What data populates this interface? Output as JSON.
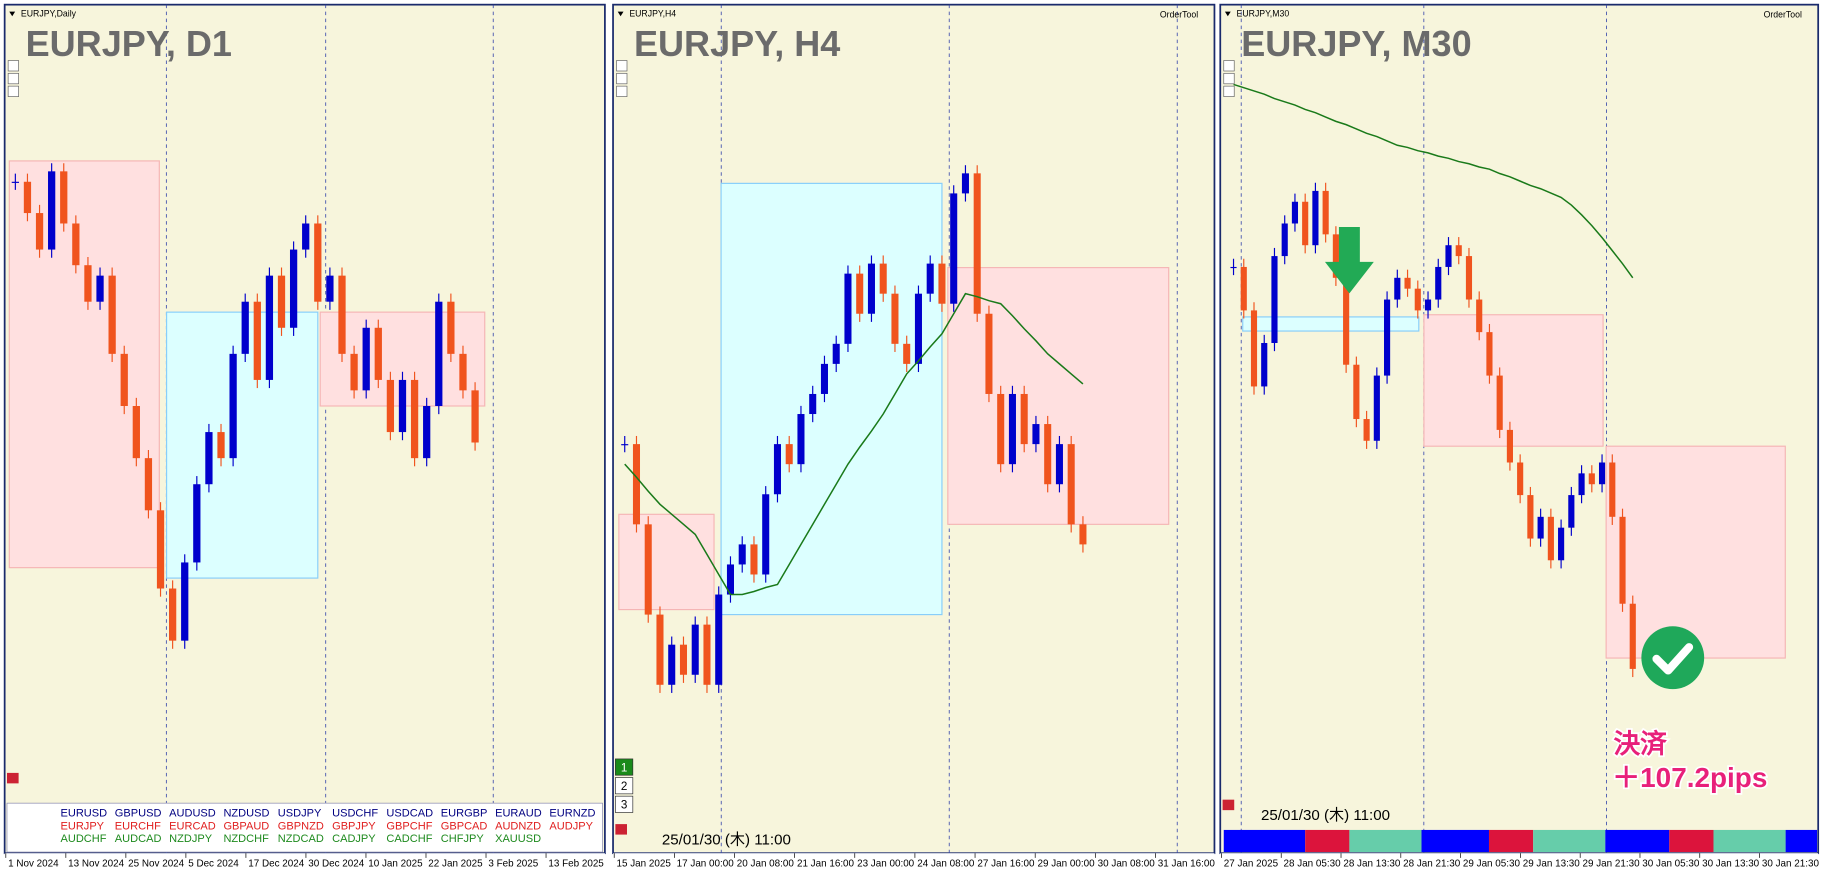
{
  "panels": [
    {
      "window_label": "EURJPY,Daily",
      "title": "EURJPY, D1",
      "x_labels": [
        "1 Nov 2024",
        "13 Nov 2024",
        "25 Nov 2024",
        "5 Dec 2024",
        "17 Dec 2024",
        "30 Dec 2024",
        "10 Jan 2025",
        "22 Jan 2025",
        "3 Feb 2025",
        "13 Feb 2025"
      ],
      "ylim": [
        155,
        167.5
      ],
      "closes": [
        165.8,
        165.2,
        164.5,
        166.0,
        165.0,
        164.2,
        163.5,
        164.0,
        162.5,
        161.5,
        160.5,
        159.5,
        158.0,
        157.0,
        158.5,
        160.0,
        161.0,
        160.5,
        162.5,
        163.5,
        162.0,
        164.0,
        163.0,
        164.5,
        165.0,
        163.5,
        164.0,
        162.5,
        161.8,
        163.0,
        162.0,
        161.0,
        162.0,
        160.5,
        161.5,
        163.5,
        162.5,
        161.8,
        160.8
      ],
      "zones": [
        {
          "from": 0,
          "to": 12.4,
          "low": 158.4,
          "high": 166.2,
          "color": "#ffe0e0"
        },
        {
          "from": 13,
          "to": 25.5,
          "low": 158.2,
          "high": 163.3,
          "color": "#dcffff"
        },
        {
          "from": 25.7,
          "to": 39.3,
          "low": 161.5,
          "high": 163.3,
          "color": "#ffe0e0"
        }
      ]
    },
    {
      "window_label": "EURJPY,H4",
      "title": "EURJPY, H4",
      "x_labels": [
        "15 Jan 2025",
        "17 Jan 00:00",
        "20 Jan 08:00",
        "21 Jan 16:00",
        "23 Jan 00:00",
        "24 Jan 08:00",
        "27 Jan 16:00",
        "29 Jan 00:00",
        "30 Jan 08:00",
        "31 Jan 16:00"
      ],
      "ylim": [
        158,
        164.5
      ],
      "closes": [
        161.0,
        160.2,
        159.3,
        158.6,
        159.0,
        158.7,
        159.2,
        158.6,
        159.5,
        159.8,
        160.0,
        159.7,
        160.5,
        161.0,
        160.8,
        161.3,
        161.5,
        161.8,
        162.0,
        162.7,
        162.3,
        162.8,
        162.5,
        162.0,
        161.8,
        162.5,
        162.8,
        162.4,
        163.5,
        163.7,
        162.3,
        161.5,
        160.8,
        161.5,
        161.0,
        161.2,
        160.6,
        161.0,
        160.2,
        160.0
      ],
      "ma": [
        160.8,
        160.67,
        160.53,
        160.4,
        160.3,
        160.2,
        160.1,
        159.9,
        159.7,
        159.5,
        159.5,
        159.53,
        159.57,
        159.6,
        159.8,
        160.0,
        160.2,
        160.4,
        160.6,
        160.8,
        160.97,
        161.13,
        161.3,
        161.5,
        161.7,
        161.83,
        161.97,
        162.1,
        162.3,
        162.5,
        162.47,
        162.43,
        162.4,
        162.28,
        162.15,
        162.03,
        161.9,
        161.8,
        161.7,
        161.6
      ],
      "zones": [
        {
          "from": 0,
          "to": 8.1,
          "low": 159.35,
          "high": 160.3,
          "color": "#ffe0e0"
        },
        {
          "from": 8.7,
          "to": 27.5,
          "low": 159.3,
          "high": 163.6,
          "color": "#dcffff"
        },
        {
          "from": 28,
          "to": 46.8,
          "low": 160.2,
          "high": 162.76,
          "color": "#ffe0e0"
        }
      ]
    },
    {
      "window_label": "EURJPY,M30",
      "title": "EURJPY, M30",
      "x_labels": [
        "27 Jan 2025",
        "28 Jan 05:30",
        "28 Jan 13:30",
        "28 Jan 21:30",
        "29 Jan 05:30",
        "29 Jan 13:30",
        "29 Jan 21:30",
        "30 Jan 05:30",
        "30 Jan 13:30",
        "30 Jan 21:30"
      ],
      "ylim": [
        157.5,
        163.5
      ],
      "closes": [
        161.9,
        161.5,
        160.8,
        161.2,
        162.0,
        162.3,
        162.5,
        162.1,
        162.6,
        162.2,
        161.8,
        161.0,
        160.5,
        160.3,
        160.9,
        161.6,
        161.8,
        161.7,
        161.5,
        161.6,
        161.9,
        162.1,
        162.0,
        161.6,
        161.3,
        160.9,
        160.4,
        160.1,
        159.8,
        159.4,
        159.6,
        159.2,
        159.5,
        159.8,
        160.0,
        159.9,
        160.1,
        159.6,
        158.8,
        158.2
      ],
      "ma": [
        163.58,
        163.55,
        163.52,
        163.49,
        163.45,
        163.42,
        163.39,
        163.35,
        163.32,
        163.28,
        163.24,
        163.21,
        163.17,
        163.13,
        163.1,
        163.06,
        163.02,
        163.0,
        162.97,
        162.95,
        162.92,
        162.9,
        162.87,
        162.85,
        162.82,
        162.8,
        162.76,
        162.73,
        162.69,
        162.65,
        162.62,
        162.58,
        162.54,
        162.47,
        162.38,
        162.28,
        162.17,
        162.05,
        161.93,
        161.8
      ],
      "zones": [
        {
          "from": 1.4,
          "to": 18.6,
          "low": 161.31,
          "high": 161.44,
          "color": "#dcffff"
        },
        {
          "from": 19.1,
          "to": 36.6,
          "low": 160.25,
          "high": 161.46,
          "color": "#ffe0e0"
        },
        {
          "from": 36.9,
          "to": 54.4,
          "low": 158.3,
          "high": 160.25,
          "color": "#ffe0e0"
        }
      ]
    }
  ],
  "up_color": "#0000cc",
  "down_color": "#f0541e",
  "ma_color": "#1a7a1a",
  "order_tool": "OrderTool",
  "timestamp": "25/01/30 (木) 11:00",
  "buttons": [
    "1",
    "2",
    "3"
  ],
  "symbols": [
    [
      "EURUSD",
      "GBPUSD",
      "AUDUSD",
      "NZDUSD",
      "USDJPY",
      "USDCHF",
      "USDCAD",
      "EURGBP",
      "EURAUD",
      "EURNZD"
    ],
    [
      "EURJPY",
      "EURCHF",
      "EURCAD",
      "GBPAUD",
      "GBPNZD",
      "GBPJPY",
      "GBPCHF",
      "GBPCAD",
      "AUDNZD",
      "AUDJPY"
    ],
    [
      "AUDCHF",
      "AUDCAD",
      "NZDJPY",
      "NZDCHF",
      "NZDCAD",
      "CADJPY",
      "CADCHF",
      "CHFJPY",
      "XAUUSD"
    ]
  ],
  "symbol_colors": [
    "#000080",
    "#e02020",
    "#1e8a1e"
  ],
  "result": {
    "label": "決済",
    "pips": "＋107.2pips"
  }
}
